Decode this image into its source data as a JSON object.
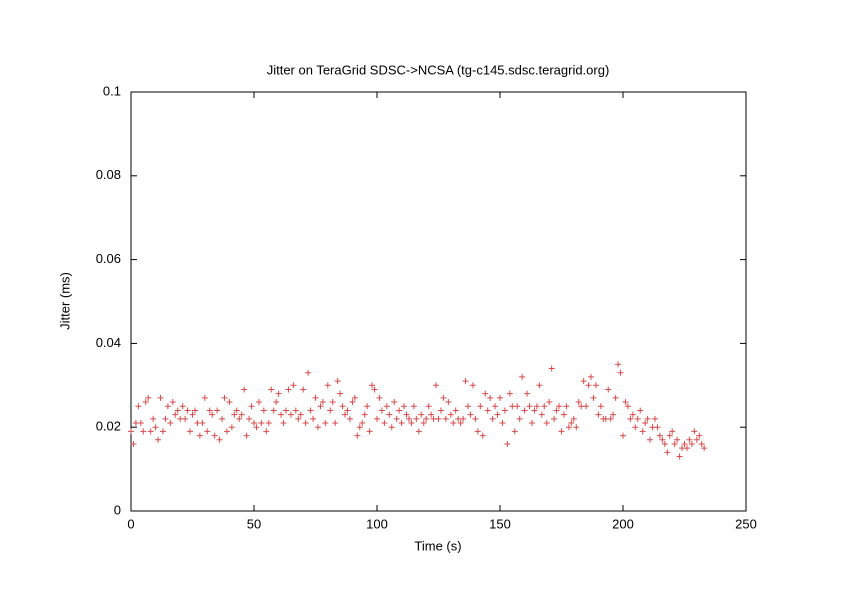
{
  "chart_data": {
    "type": "scatter",
    "title": "Jitter on TeraGrid SDSC->NCSA (tg-c145.sdsc.teragrid.org)",
    "x_label": "Time (s)",
    "y_label": "Jitter (ms)",
    "xlim": [
      0,
      250
    ],
    "xticks": [
      0,
      50,
      100,
      150,
      200,
      250
    ],
    "ylim": [
      0,
      0.1
    ],
    "yticks": [
      0,
      0.02,
      0.04,
      0.06,
      0.08,
      0.1
    ],
    "series": [
      {
        "color": "#d94a4a",
        "x": [
          0,
          1,
          2,
          3,
          4,
          5,
          6,
          7,
          8,
          9,
          10,
          11,
          12,
          13,
          14,
          15,
          16,
          17,
          18,
          19,
          20,
          21,
          22,
          23,
          24,
          25,
          26,
          27,
          28,
          29,
          30,
          31,
          32,
          33,
          34,
          35,
          36,
          37,
          38,
          39,
          40,
          41,
          42,
          43,
          44,
          45,
          46,
          47,
          48,
          49,
          50,
          51,
          52,
          53,
          54,
          55,
          56,
          57,
          58,
          59,
          60,
          61,
          62,
          63,
          64,
          65,
          66,
          67,
          68,
          69,
          70,
          71,
          72,
          73,
          74,
          75,
          76,
          77,
          78,
          79,
          80,
          81,
          82,
          83,
          84,
          85,
          86,
          87,
          88,
          89,
          90,
          91,
          92,
          93,
          94,
          95,
          96,
          97,
          98,
          99,
          100,
          101,
          102,
          103,
          104,
          105,
          106,
          107,
          108,
          109,
          110,
          111,
          112,
          113,
          114,
          115,
          116,
          117,
          118,
          119,
          120,
          121,
          122,
          123,
          124,
          125,
          126,
          127,
          128,
          129,
          130,
          131,
          132,
          133,
          134,
          135,
          136,
          137,
          138,
          139,
          140,
          141,
          142,
          143,
          144,
          145,
          146,
          147,
          148,
          149,
          150,
          151,
          152,
          153,
          154,
          155,
          156,
          157,
          158,
          159,
          160,
          161,
          162,
          163,
          164,
          165,
          166,
          167,
          168,
          169,
          170,
          171,
          172,
          173,
          174,
          175,
          176,
          177,
          178,
          179,
          180,
          181,
          182,
          183,
          184,
          185,
          186,
          187,
          188,
          189,
          190,
          191,
          192,
          193,
          194,
          195,
          196,
          197,
          198,
          199,
          200,
          201,
          202,
          203,
          204,
          205,
          206,
          207,
          208,
          209,
          210,
          211,
          212,
          213,
          214,
          215,
          216,
          217,
          218,
          219,
          220,
          221,
          222,
          223,
          224,
          225,
          226,
          227,
          228,
          229,
          230,
          231,
          232,
          233
        ],
        "values": [
          0.019,
          0.016,
          0.021,
          0.025,
          0.021,
          0.019,
          0.026,
          0.027,
          0.019,
          0.022,
          0.02,
          0.017,
          0.027,
          0.019,
          0.022,
          0.025,
          0.021,
          0.026,
          0.023,
          0.024,
          0.022,
          0.025,
          0.022,
          0.024,
          0.019,
          0.023,
          0.024,
          0.021,
          0.018,
          0.021,
          0.027,
          0.019,
          0.024,
          0.023,
          0.018,
          0.024,
          0.017,
          0.022,
          0.027,
          0.019,
          0.026,
          0.02,
          0.023,
          0.024,
          0.022,
          0.023,
          0.029,
          0.018,
          0.022,
          0.025,
          0.021,
          0.02,
          0.026,
          0.021,
          0.024,
          0.019,
          0.021,
          0.029,
          0.024,
          0.026,
          0.028,
          0.023,
          0.021,
          0.024,
          0.029,
          0.023,
          0.03,
          0.024,
          0.022,
          0.023,
          0.029,
          0.021,
          0.033,
          0.024,
          0.022,
          0.027,
          0.02,
          0.025,
          0.026,
          0.021,
          0.03,
          0.024,
          0.026,
          0.021,
          0.031,
          0.028,
          0.025,
          0.023,
          0.024,
          0.022,
          0.026,
          0.027,
          0.018,
          0.02,
          0.021,
          0.023,
          0.025,
          0.019,
          0.03,
          0.029,
          0.022,
          0.027,
          0.024,
          0.021,
          0.025,
          0.023,
          0.02,
          0.026,
          0.022,
          0.024,
          0.021,
          0.025,
          0.023,
          0.022,
          0.021,
          0.025,
          0.022,
          0.019,
          0.023,
          0.021,
          0.022,
          0.025,
          0.023,
          0.022,
          0.03,
          0.022,
          0.024,
          0.027,
          0.022,
          0.026,
          0.023,
          0.021,
          0.024,
          0.022,
          0.021,
          0.022,
          0.031,
          0.025,
          0.023,
          0.03,
          0.022,
          0.019,
          0.025,
          0.018,
          0.028,
          0.024,
          0.027,
          0.022,
          0.025,
          0.023,
          0.027,
          0.021,
          0.024,
          0.016,
          0.028,
          0.025,
          0.019,
          0.025,
          0.022,
          0.032,
          0.024,
          0.028,
          0.025,
          0.021,
          0.024,
          0.025,
          0.03,
          0.023,
          0.025,
          0.021,
          0.026,
          0.034,
          0.022,
          0.024,
          0.025,
          0.019,
          0.023,
          0.025,
          0.02,
          0.021,
          0.022,
          0.02,
          0.026,
          0.025,
          0.031,
          0.025,
          0.03,
          0.032,
          0.027,
          0.03,
          0.023,
          0.025,
          0.022,
          0.022,
          0.029,
          0.022,
          0.023,
          0.027,
          0.035,
          0.033,
          0.018,
          0.026,
          0.025,
          0.022,
          0.023,
          0.02,
          0.022,
          0.024,
          0.019,
          0.021,
          0.022,
          0.017,
          0.02,
          0.022,
          0.02,
          0.018,
          0.017,
          0.016,
          0.014,
          0.018,
          0.019,
          0.016,
          0.017,
          0.013,
          0.015,
          0.016,
          0.015,
          0.017,
          0.016,
          0.019,
          0.017,
          0.018,
          0.016,
          0.015
        ]
      }
    ]
  }
}
